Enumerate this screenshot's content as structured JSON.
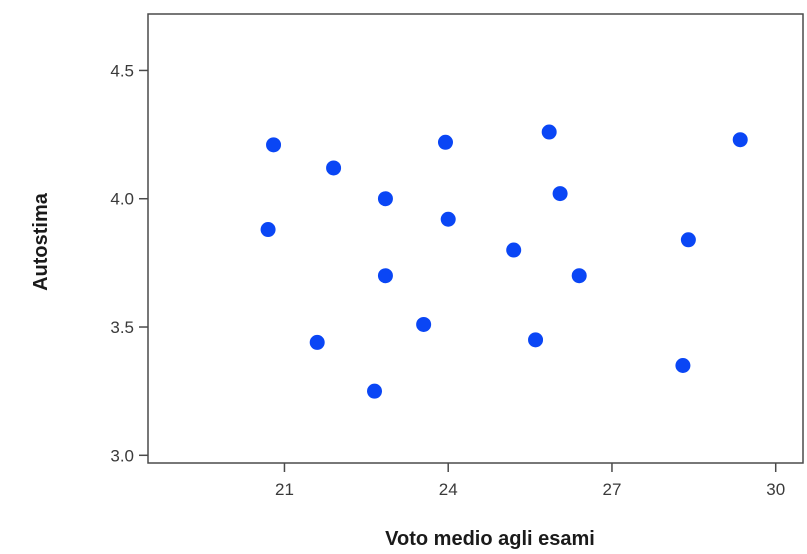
{
  "chart_data": {
    "type": "scatter",
    "title": "",
    "xlabel": "Voto medio agli esami",
    "ylabel": "Autostima",
    "xlim": [
      18.5,
      30.5
    ],
    "ylim": [
      2.97,
      4.72
    ],
    "xticks": [
      21,
      24,
      27,
      30
    ],
    "yticks": [
      3.0,
      3.5,
      4.0,
      4.5
    ],
    "ytick_labels": [
      "3.0",
      "3.5",
      "4.0",
      "4.5"
    ],
    "xtick_labels": [
      "21",
      "24",
      "27",
      "30"
    ],
    "grid": false,
    "legend": "none",
    "marker_color": "#0a46f5",
    "points": [
      {
        "x": 20.8,
        "y": 4.21
      },
      {
        "x": 20.7,
        "y": 3.88
      },
      {
        "x": 21.6,
        "y": 3.44
      },
      {
        "x": 21.9,
        "y": 4.12
      },
      {
        "x": 22.65,
        "y": 3.25
      },
      {
        "x": 22.85,
        "y": 4.0
      },
      {
        "x": 22.85,
        "y": 3.7
      },
      {
        "x": 23.55,
        "y": 3.51
      },
      {
        "x": 23.95,
        "y": 4.22
      },
      {
        "x": 24.0,
        "y": 3.92
      },
      {
        "x": 25.2,
        "y": 3.8
      },
      {
        "x": 25.6,
        "y": 3.45
      },
      {
        "x": 25.85,
        "y": 4.26
      },
      {
        "x": 26.05,
        "y": 4.02
      },
      {
        "x": 26.4,
        "y": 3.7
      },
      {
        "x": 28.3,
        "y": 3.35
      },
      {
        "x": 28.4,
        "y": 3.84
      },
      {
        "x": 29.35,
        "y": 4.23
      }
    ]
  }
}
